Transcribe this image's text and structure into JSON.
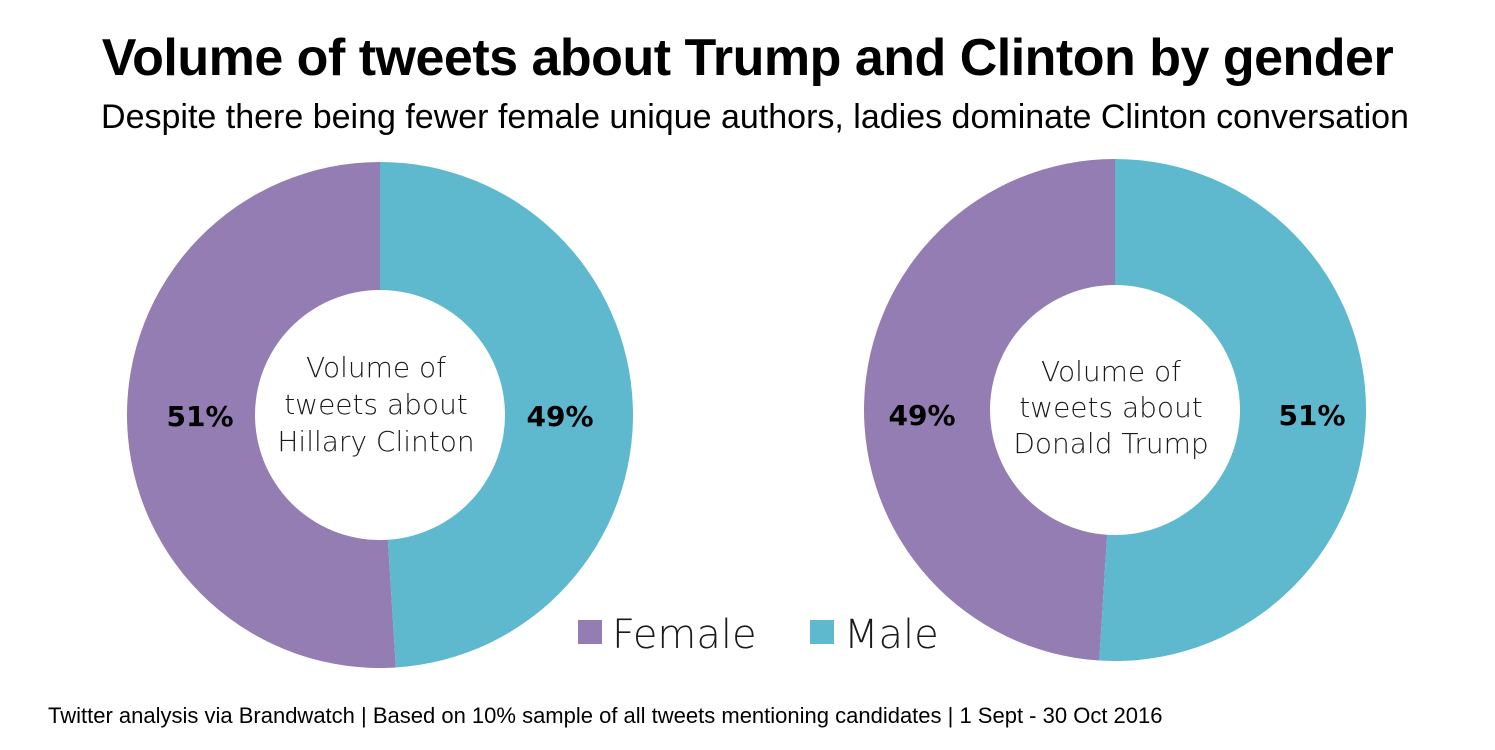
{
  "header": {
    "title": "Volume of tweets about Trump and Clinton by gender",
    "subtitle": "Despite there being fewer female unique authors, ladies dominate Clinton conversation"
  },
  "footer": {
    "source": "Twitter analysis via Brandwatch | Based on 10% sample of all tweets mentioning candidates | 1 Sept - 30 Oct 2016"
  },
  "colors": {
    "female": "#937db2",
    "male": "#5eb9cf"
  },
  "chart_data": [
    {
      "type": "pie",
      "center_label": [
        "Volume of",
        "tweets about",
        "Hillary Clinton"
      ],
      "categories": [
        "Female",
        "Male"
      ],
      "values": [
        51,
        49
      ],
      "labels": [
        "51%",
        "49%"
      ]
    },
    {
      "type": "pie",
      "center_label": [
        "Volume of",
        "tweets about",
        "Donald Trump"
      ],
      "categories": [
        "Female",
        "Male"
      ],
      "values": [
        49,
        51
      ],
      "labels": [
        "49%",
        "51%"
      ]
    }
  ],
  "legend": {
    "items": [
      "Female",
      "Male"
    ]
  }
}
